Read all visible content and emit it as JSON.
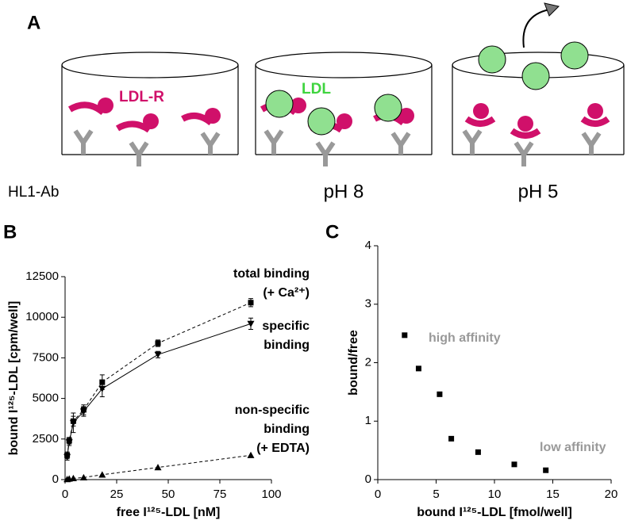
{
  "panels": {
    "a": {
      "letter": "A",
      "receptor_label": "LDL-R",
      "ldl_label": "LDL",
      "antibody_label": "HL1-Ab",
      "condition_1": "pH 8",
      "condition_2": "pH 5"
    },
    "b": {
      "letter": "B"
    },
    "c": {
      "letter": "C"
    }
  },
  "chart_data": [
    {
      "type": "line",
      "xlabel": "free I¹²⁵-LDL [nM]",
      "ylabel": "bound I¹²⁵-LDL [cpm/well]",
      "xlim": [
        0,
        100
      ],
      "xticks": [
        0,
        25,
        50,
        75,
        100
      ],
      "ylim": [
        0,
        12500
      ],
      "yticks": [
        0,
        2500,
        5000,
        7500,
        10000,
        12500
      ],
      "x": [
        1,
        2,
        4,
        9,
        18,
        45,
        90
      ],
      "series": [
        {
          "marker": "square",
          "line_style": "dashed",
          "color": "#000000",
          "values": [
            1500,
            2400,
            3600,
            4300,
            6000,
            8400,
            10900
          ],
          "errors": [
            200,
            200,
            300,
            300,
            450,
            200,
            250
          ],
          "annotation": [
            "total binding",
            "(+ Ca²⁺)"
          ]
        },
        {
          "marker": "triangle-down",
          "line_style": "solid",
          "color": "#000000",
          "values": [
            1400,
            2300,
            3500,
            4200,
            5600,
            7700,
            9600
          ],
          "errors": [
            200,
            200,
            600,
            300,
            500,
            200,
            350
          ],
          "annotation": [
            "specific",
            "binding"
          ]
        },
        {
          "marker": "triangle-up",
          "line_style": "dashed",
          "color": "#000000",
          "values": [
            20,
            50,
            80,
            130,
            300,
            750,
            1500
          ],
          "errors": [
            0,
            0,
            0,
            0,
            0,
            0,
            0
          ],
          "annotation": [
            "non-specific",
            "binding",
            "(+ EDTA)"
          ]
        }
      ]
    },
    {
      "type": "scatter",
      "xlabel": "bound I¹²⁵-LDL [fmol/well]",
      "ylabel": "bound/free",
      "xlim": [
        0,
        20
      ],
      "xticks": [
        0,
        5,
        10,
        15,
        20
      ],
      "ylim": [
        0,
        4
      ],
      "yticks": [
        0,
        1,
        2,
        3,
        4
      ],
      "x": [
        2.3,
        3.5,
        5.3,
        6.3,
        8.6,
        11.7,
        14.4
      ],
      "values": [
        2.47,
        1.9,
        1.46,
        0.7,
        0.47,
        0.26,
        0.16
      ],
      "color": "#000000",
      "annotations": [
        "high affinity",
        "low affinity"
      ]
    }
  ]
}
